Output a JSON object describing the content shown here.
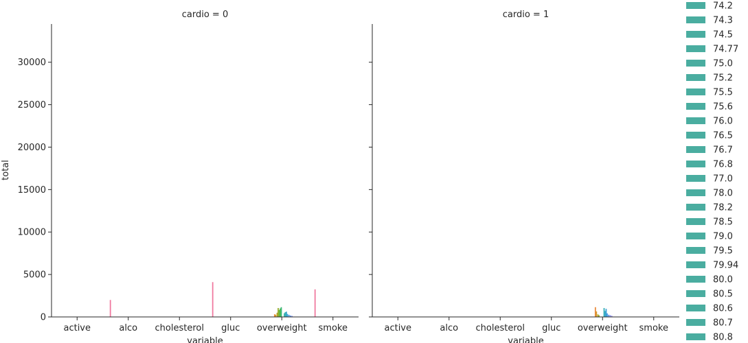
{
  "chart_data": {
    "type": "bar",
    "layout": "facet grid, 2 panels side by side, shared y axis",
    "y_label": "total",
    "x_label": "variable",
    "ylim": [
      0,
      34500
    ],
    "y_ticks": [
      0,
      5000,
      10000,
      15000,
      20000,
      25000,
      30000
    ],
    "categories": [
      "active",
      "alco",
      "cholesterol",
      "gluc",
      "overweight",
      "smoke"
    ],
    "panels": [
      {
        "title": "cardio = 0",
        "bars": [
          {
            "category": "alco",
            "offset": -0.35,
            "value": 2000,
            "color": "#f07aa0"
          },
          {
            "category": "gluc",
            "offset": -0.35,
            "value": 4100,
            "color": "#f07aa0"
          },
          {
            "category": "smoke",
            "offset": -0.35,
            "value": 3250,
            "color": "#f07aa0"
          },
          {
            "category": "overweight",
            "offset": -0.14,
            "value": 310,
            "color": "#e98a3c"
          },
          {
            "category": "overweight",
            "offset": -0.12,
            "value": 260,
            "color": "#d39b2f"
          },
          {
            "category": "overweight",
            "offset": -0.09,
            "value": 500,
            "color": "#b3a22a"
          },
          {
            "category": "overweight",
            "offset": -0.07,
            "value": 1050,
            "color": "#95ab2a"
          },
          {
            "category": "overweight",
            "offset": -0.05,
            "value": 820,
            "color": "#6fb43a"
          },
          {
            "category": "overweight",
            "offset": -0.03,
            "value": 1000,
            "color": "#4aba48"
          },
          {
            "category": "overweight",
            "offset": -0.01,
            "value": 1150,
            "color": "#3bb77a"
          },
          {
            "category": "overweight",
            "offset": 0.05,
            "value": 440,
            "color": "#3ab6a4"
          },
          {
            "category": "overweight",
            "offset": 0.07,
            "value": 560,
            "color": "#38b0b8"
          },
          {
            "category": "overweight",
            "offset": 0.09,
            "value": 620,
            "color": "#38a9c8"
          },
          {
            "category": "overweight",
            "offset": 0.11,
            "value": 350,
            "color": "#3aa0d6"
          },
          {
            "category": "overweight",
            "offset": 0.14,
            "value": 250,
            "color": "#4497e0"
          },
          {
            "category": "overweight",
            "offset": 0.17,
            "value": 160,
            "color": "#5b8ee6"
          },
          {
            "category": "overweight",
            "offset": 0.2,
            "value": 120,
            "color": "#7a86e8"
          }
        ]
      },
      {
        "title": "cardio = 1",
        "bars": [
          {
            "category": "overweight",
            "offset": -0.14,
            "value": 1150,
            "color": "#e98a3c"
          },
          {
            "category": "overweight",
            "offset": -0.12,
            "value": 650,
            "color": "#d39b2f"
          },
          {
            "category": "overweight",
            "offset": -0.09,
            "value": 300,
            "color": "#b3a22a"
          },
          {
            "category": "overweight",
            "offset": -0.07,
            "value": 200,
            "color": "#95ab2a"
          },
          {
            "category": "overweight",
            "offset": 0.03,
            "value": 1050,
            "color": "#38b0b8"
          },
          {
            "category": "overweight",
            "offset": 0.05,
            "value": 700,
            "color": "#38a9c8"
          },
          {
            "category": "overweight",
            "offset": 0.07,
            "value": 950,
            "color": "#3aa0d6"
          },
          {
            "category": "overweight",
            "offset": 0.09,
            "value": 420,
            "color": "#4497e0"
          },
          {
            "category": "overweight",
            "offset": 0.12,
            "value": 260,
            "color": "#5b8ee6"
          },
          {
            "category": "overweight",
            "offset": 0.15,
            "value": 200,
            "color": "#7a86e8"
          },
          {
            "category": "overweight",
            "offset": 0.18,
            "value": 130,
            "color": "#8f80e6"
          }
        ]
      }
    ],
    "legend": {
      "placement": "right",
      "clipped": true,
      "swatch_color": "#4aada0",
      "entries": [
        "74.2",
        "74.3",
        "74.5",
        "74.77",
        "75.0",
        "75.2",
        "75.5",
        "75.6",
        "76.0",
        "76.5",
        "76.7",
        "76.8",
        "77.0",
        "78.0",
        "78.2",
        "78.5",
        "79.0",
        "79.5",
        "79.94",
        "80.0",
        "80.5",
        "80.6",
        "80.7",
        "80.8"
      ]
    }
  }
}
